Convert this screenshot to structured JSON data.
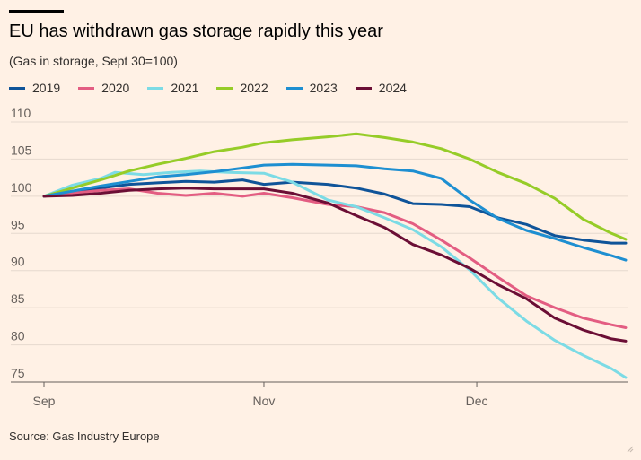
{
  "title": "EU has withdrawn gas storage rapidly this year",
  "subtitle": "(Gas in storage, Sept 30=100)",
  "source": "Source: Gas Industry Europe",
  "colors": {
    "background": "#fff1e5",
    "grid": "#e6d9ce",
    "axis_text": "#66605c"
  },
  "chart_data": {
    "type": "line",
    "title": "EU has withdrawn gas storage rapidly this year",
    "subtitle": "(Gas in storage, Sept 30=100)",
    "xlabel": "",
    "ylabel": "",
    "x_tick_labels": [
      {
        "label": "Sep",
        "day": 0
      },
      {
        "label": "Nov",
        "day": 31
      },
      {
        "label": "Dec",
        "day": 61
      }
    ],
    "x_range_days": [
      0,
      82
    ],
    "yticks": [
      75,
      80,
      85,
      90,
      95,
      100,
      105,
      110
    ],
    "ylim": [
      75,
      110
    ],
    "grid": true,
    "legend_position": "top",
    "series": [
      {
        "name": "2019",
        "color": "#0f5499",
        "points": [
          [
            0,
            100
          ],
          [
            4,
            100.6
          ],
          [
            8,
            101.1
          ],
          [
            12,
            101.6
          ],
          [
            16,
            101.8
          ],
          [
            20,
            102
          ],
          [
            24,
            101.9
          ],
          [
            28,
            102.2
          ],
          [
            31,
            101.6
          ],
          [
            35,
            101.9
          ],
          [
            40,
            101.6
          ],
          [
            44,
            101.1
          ],
          [
            48,
            100.3
          ],
          [
            52,
            99
          ],
          [
            56,
            98.9
          ],
          [
            60,
            98.6
          ],
          [
            64,
            97.1
          ],
          [
            68,
            96.2
          ],
          [
            72,
            94.7
          ],
          [
            76,
            94.1
          ],
          [
            80,
            93.7
          ],
          [
            82,
            93.7
          ]
        ]
      },
      {
        "name": "2020",
        "color": "#e35d82",
        "points": [
          [
            0,
            100
          ],
          [
            4,
            100.4
          ],
          [
            8,
            100.8
          ],
          [
            12,
            101
          ],
          [
            16,
            100.4
          ],
          [
            20,
            100.1
          ],
          [
            24,
            100.4
          ],
          [
            28,
            100
          ],
          [
            31,
            100.4
          ],
          [
            35,
            99.8
          ],
          [
            40,
            98.9
          ],
          [
            44,
            98.6
          ],
          [
            48,
            97.8
          ],
          [
            52,
            96.3
          ],
          [
            56,
            94.1
          ],
          [
            60,
            91.7
          ],
          [
            64,
            89.1
          ],
          [
            68,
            86.6
          ],
          [
            72,
            85
          ],
          [
            76,
            83.6
          ],
          [
            80,
            82.7
          ],
          [
            82,
            82.3
          ]
        ]
      },
      {
        "name": "2021",
        "color": "#7cdbe5",
        "points": [
          [
            0,
            100
          ],
          [
            4,
            101.5
          ],
          [
            8,
            102.4
          ],
          [
            10,
            103.2
          ],
          [
            14,
            102.9
          ],
          [
            18,
            103.2
          ],
          [
            22,
            103.4
          ],
          [
            26,
            103.2
          ],
          [
            31,
            103.1
          ],
          [
            35,
            101.9
          ],
          [
            40,
            99.5
          ],
          [
            44,
            98.6
          ],
          [
            48,
            97.1
          ],
          [
            52,
            95.5
          ],
          [
            56,
            93.2
          ],
          [
            60,
            90.1
          ],
          [
            64,
            86.3
          ],
          [
            68,
            83.2
          ],
          [
            72,
            80.6
          ],
          [
            76,
            78.6
          ],
          [
            80,
            76.8
          ],
          [
            82,
            75.6
          ]
        ]
      },
      {
        "name": "2022",
        "color": "#96cc28",
        "points": [
          [
            0,
            100
          ],
          [
            4,
            101.1
          ],
          [
            8,
            102.2
          ],
          [
            12,
            103.4
          ],
          [
            16,
            104.3
          ],
          [
            20,
            105.1
          ],
          [
            24,
            106
          ],
          [
            28,
            106.6
          ],
          [
            31,
            107.2
          ],
          [
            35,
            107.6
          ],
          [
            40,
            108
          ],
          [
            44,
            108.4
          ],
          [
            48,
            107.9
          ],
          [
            52,
            107.3
          ],
          [
            56,
            106.4
          ],
          [
            60,
            105
          ],
          [
            64,
            103.2
          ],
          [
            68,
            101.7
          ],
          [
            72,
            99.7
          ],
          [
            76,
            96.9
          ],
          [
            80,
            95
          ],
          [
            82,
            94.2
          ]
        ]
      },
      {
        "name": "2023",
        "color": "#1e8fd1",
        "points": [
          [
            0,
            100
          ],
          [
            4,
            100.7
          ],
          [
            8,
            101.4
          ],
          [
            12,
            102
          ],
          [
            16,
            102.6
          ],
          [
            20,
            102.9
          ],
          [
            24,
            103.3
          ],
          [
            28,
            103.8
          ],
          [
            31,
            104.2
          ],
          [
            35,
            104.3
          ],
          [
            40,
            104.2
          ],
          [
            44,
            104.1
          ],
          [
            48,
            103.7
          ],
          [
            52,
            103.4
          ],
          [
            56,
            102.4
          ],
          [
            60,
            99.5
          ],
          [
            64,
            97
          ],
          [
            68,
            95.4
          ],
          [
            72,
            94.3
          ],
          [
            76,
            93.1
          ],
          [
            80,
            92
          ],
          [
            82,
            91.4
          ]
        ]
      },
      {
        "name": "2024",
        "color": "#6b0e35",
        "points": [
          [
            0,
            100
          ],
          [
            4,
            100.1
          ],
          [
            8,
            100.4
          ],
          [
            12,
            100.8
          ],
          [
            16,
            101
          ],
          [
            20,
            101.1
          ],
          [
            24,
            101
          ],
          [
            28,
            101
          ],
          [
            31,
            101
          ],
          [
            35,
            100.4
          ],
          [
            40,
            99.1
          ],
          [
            44,
            97.4
          ],
          [
            48,
            95.8
          ],
          [
            52,
            93.5
          ],
          [
            56,
            92.1
          ],
          [
            60,
            90.3
          ],
          [
            64,
            88.1
          ],
          [
            68,
            86.2
          ],
          [
            72,
            83.6
          ],
          [
            76,
            82
          ],
          [
            80,
            80.8
          ],
          [
            82,
            80.5
          ]
        ]
      }
    ]
  }
}
